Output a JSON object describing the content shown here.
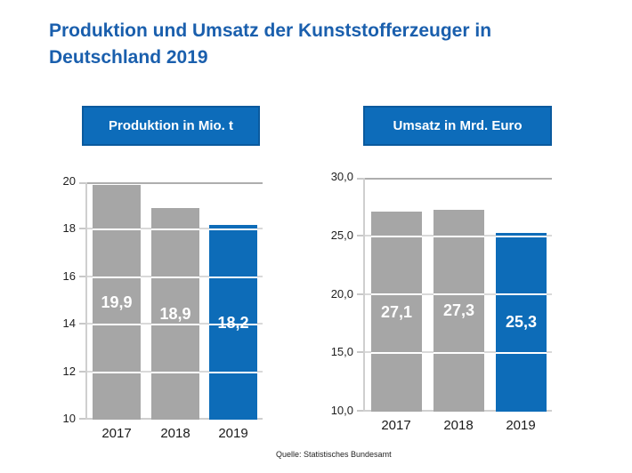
{
  "page": {
    "title_lines": [
      "Produktion und Umsatz der Kunststofferzeuger in",
      "Deutschland 2019"
    ],
    "source": "Quelle: Statistisches Bundesamt"
  },
  "colors": {
    "title_blue": "#1a5fad",
    "header_fill": "#0d6cba",
    "bar_gray": "#a6a6a6",
    "bar_blue_highlight": "#0d6cb8",
    "gridline": "#d9d9d9"
  },
  "chart_data": [
    {
      "type": "bar",
      "title": "Produktion in Mio. t",
      "categories": [
        "2017",
        "2018",
        "2019"
      ],
      "values": [
        19.9,
        18.9,
        18.2
      ],
      "value_labels": [
        "19,9",
        "18,9",
        "18,2"
      ],
      "ylabel": "Mio. t",
      "ylim": [
        10,
        20
      ],
      "ytick_step": 2,
      "ytick_labels": [
        "10",
        "12",
        "14",
        "16",
        "18",
        "20"
      ],
      "bar_colors": [
        "#a6a6a6",
        "#a6a6a6",
        "#0d6cb8"
      ],
      "grid": true,
      "value_labels_position": "inside-center"
    },
    {
      "type": "bar",
      "title": "Umsatz in Mrd. Euro",
      "categories": [
        "2017",
        "2018",
        "2019"
      ],
      "values": [
        27.1,
        27.3,
        25.3
      ],
      "value_labels": [
        "27,1",
        "27,3",
        "25,3"
      ],
      "ylabel": "Mrd. Euro",
      "ylim": [
        10,
        30
      ],
      "ytick_step": 5,
      "ytick_labels": [
        "10,0",
        "15,0",
        "20,0",
        "25,0",
        "30,0"
      ],
      "bar_colors": [
        "#a6a6a6",
        "#a6a6a6",
        "#0d6cb8"
      ],
      "grid": true,
      "value_labels_position": "inside-center"
    }
  ]
}
